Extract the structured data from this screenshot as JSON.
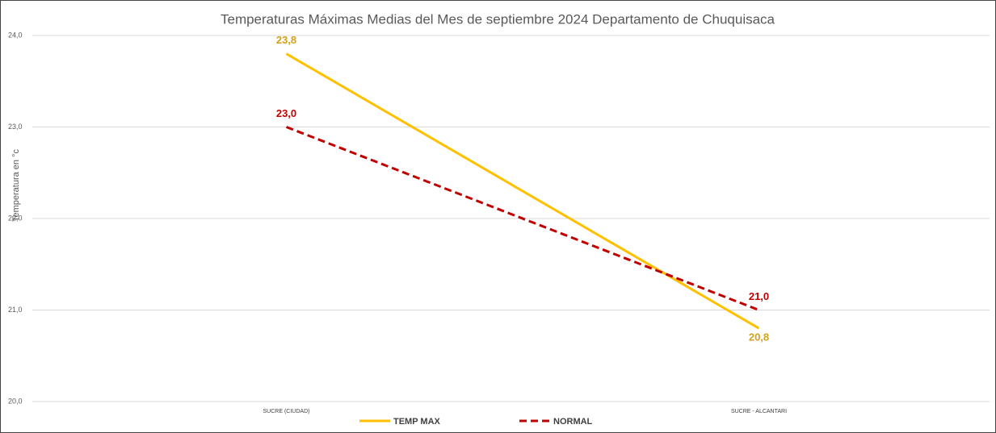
{
  "chart_data": {
    "type": "line",
    "title": "Temperaturas Máximas Medias del Mes de septiembre 2024 Departamento  de Chuquisaca",
    "y_label": "Temperatura en °c",
    "categories": [
      "SUCRE (CIUDAD)",
      "SUCRE - ALCANTARI"
    ],
    "series": [
      {
        "name": "TEMP MAX",
        "color": "#ffc000",
        "label_color": "#d4a017",
        "dash": false,
        "values": [
          23.8,
          20.8
        ],
        "value_labels": [
          "23,8",
          "20,8"
        ]
      },
      {
        "name": "NORMAL",
        "color": "#c00000",
        "label_color": "#c00000",
        "dash": true,
        "values": [
          23.0,
          21.0
        ],
        "value_labels": [
          "23,0",
          "21,0"
        ]
      }
    ],
    "ylim": [
      20,
      24
    ],
    "yticks": [
      {
        "value": 20,
        "label": "20,0"
      },
      {
        "value": 21,
        "label": "21,0"
      },
      {
        "value": 22,
        "label": "22,0"
      },
      {
        "value": 23,
        "label": "23,0"
      },
      {
        "value": 24,
        "label": "24,0"
      }
    ],
    "grid": true,
    "legend": "bottom"
  }
}
